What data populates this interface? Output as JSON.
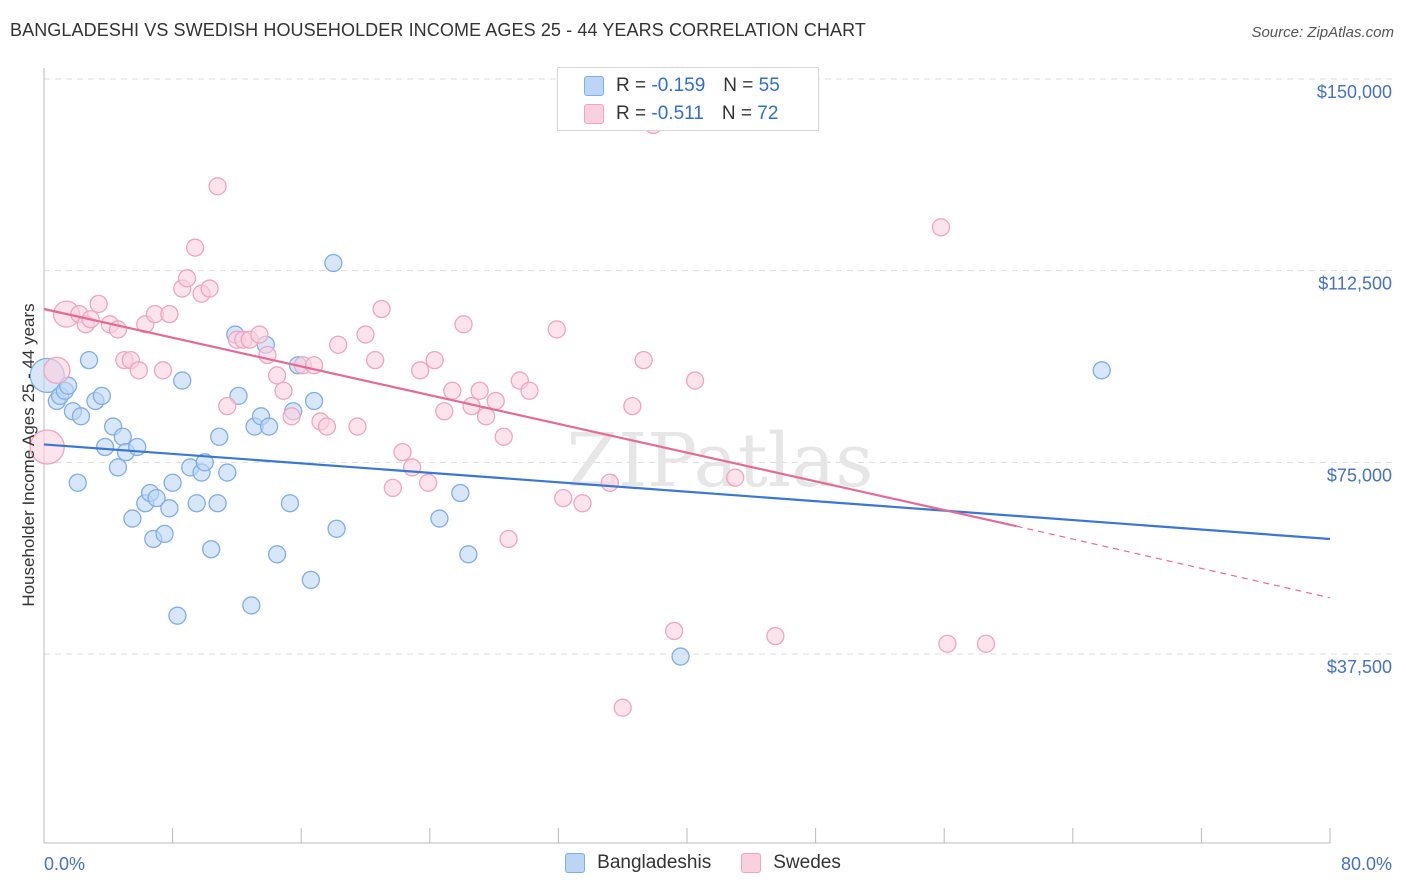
{
  "title": "BANGLADESHI VS SWEDISH HOUSEHOLDER INCOME AGES 25 - 44 YEARS CORRELATION CHART",
  "source": "Source: ZipAtlas.com",
  "watermark": "ZIPatlas",
  "legend": {
    "rows": [
      {
        "r_label": "R = ",
        "r_value": "-0.159",
        "n_label": "N = ",
        "n_value": "55",
        "color": "#7faee8",
        "fill": "#bcd5f5"
      },
      {
        "r_label": "R = ",
        "r_value": "-0.511",
        "n_label": "N = ",
        "n_value": "72",
        "color": "#f0a5bf",
        "fill": "#fbd0de"
      }
    ]
  },
  "bottom_legend": [
    {
      "label": "Bangladeshis",
      "color": "#7faee8",
      "fill": "#bcd5f5"
    },
    {
      "label": "Swedes",
      "color": "#f0a5bf",
      "fill": "#fbd0de"
    }
  ],
  "chart_data": {
    "type": "scatter",
    "title": "BANGLADESHI VS SWEDISH HOUSEHOLDER INCOME AGES 25 - 44 YEARS CORRELATION CHART",
    "xlabel": "",
    "ylabel": "Householder Income Ages 25 - 44 years",
    "xlim": [
      0,
      80
    ],
    "ylim": [
      0,
      152000
    ],
    "x_tick_labels": [
      "0.0%",
      "80.0%"
    ],
    "y_ticks": [
      37500,
      75000,
      112500,
      150000
    ],
    "y_tick_labels": [
      "$37,500",
      "$75,000",
      "$112,500",
      "$150,000"
    ],
    "grid": true,
    "legend_position": "top-center",
    "series": [
      {
        "name": "Bangladeshis",
        "color": "#3a78d0",
        "fill": "#bcd5f5",
        "stroke": "#7faee8",
        "points": [
          [
            0.2,
            92000
          ],
          [
            0.8,
            87000
          ],
          [
            1.0,
            88000
          ],
          [
            1.3,
            89000
          ],
          [
            1.5,
            90000
          ],
          [
            1.8,
            85000
          ],
          [
            2.3,
            84000
          ],
          [
            2.8,
            95000
          ],
          [
            3.2,
            87000
          ],
          [
            3.6,
            88000
          ],
          [
            2.1,
            71000
          ],
          [
            3.8,
            78000
          ],
          [
            4.3,
            82000
          ],
          [
            4.6,
            74000
          ],
          [
            4.9,
            80000
          ],
          [
            5.1,
            77000
          ],
          [
            5.8,
            78000
          ],
          [
            5.5,
            64000
          ],
          [
            6.3,
            67000
          ],
          [
            6.6,
            69000
          ],
          [
            6.8,
            60000
          ],
          [
            7.0,
            68000
          ],
          [
            7.5,
            61000
          ],
          [
            7.8,
            66000
          ],
          [
            8.0,
            71000
          ],
          [
            8.3,
            45000
          ],
          [
            8.6,
            91000
          ],
          [
            9.1,
            74000
          ],
          [
            9.5,
            67000
          ],
          [
            9.8,
            73000
          ],
          [
            10.0,
            75000
          ],
          [
            10.4,
            58000
          ],
          [
            10.9,
            80000
          ],
          [
            10.8,
            67000
          ],
          [
            11.4,
            73000
          ],
          [
            11.9,
            100000
          ],
          [
            12.1,
            88000
          ],
          [
            12.9,
            47000
          ],
          [
            13.1,
            82000
          ],
          [
            13.5,
            84000
          ],
          [
            14.0,
            82000
          ],
          [
            13.8,
            98000
          ],
          [
            14.5,
            57000
          ],
          [
            15.3,
            67000
          ],
          [
            15.5,
            85000
          ],
          [
            15.8,
            94000
          ],
          [
            16.6,
            52000
          ],
          [
            16.8,
            87000
          ],
          [
            18.0,
            114000
          ],
          [
            18.2,
            62000
          ],
          [
            24.6,
            64000
          ],
          [
            25.9,
            69000
          ],
          [
            26.4,
            57000
          ],
          [
            39.6,
            37000
          ],
          [
            65.8,
            93000
          ]
        ],
        "trend": {
          "x1": 0,
          "y1": 78500,
          "x2": 80,
          "y2": 60000
        }
      },
      {
        "name": "Swedes",
        "color": "#e66a98",
        "fill": "#fbd0de",
        "stroke": "#f0a5bf",
        "points": [
          [
            0.2,
            78000
          ],
          [
            0.8,
            93000
          ],
          [
            1.4,
            104000
          ],
          [
            2.2,
            104000
          ],
          [
            2.6,
            102000
          ],
          [
            2.9,
            103000
          ],
          [
            3.4,
            106000
          ],
          [
            4.1,
            102000
          ],
          [
            4.6,
            101000
          ],
          [
            5.0,
            95000
          ],
          [
            5.4,
            95000
          ],
          [
            5.9,
            93000
          ],
          [
            6.3,
            102000
          ],
          [
            6.9,
            104000
          ],
          [
            7.4,
            93000
          ],
          [
            7.8,
            104000
          ],
          [
            8.6,
            109000
          ],
          [
            8.9,
            111000
          ],
          [
            9.4,
            117000
          ],
          [
            9.8,
            108000
          ],
          [
            10.3,
            109000
          ],
          [
            10.8,
            129000
          ],
          [
            11.4,
            86000
          ],
          [
            12.0,
            99000
          ],
          [
            12.4,
            99000
          ],
          [
            12.8,
            99000
          ],
          [
            13.4,
            100000
          ],
          [
            13.9,
            96000
          ],
          [
            14.5,
            92000
          ],
          [
            14.9,
            89000
          ],
          [
            15.4,
            84000
          ],
          [
            16.1,
            94000
          ],
          [
            16.8,
            94000
          ],
          [
            17.2,
            83000
          ],
          [
            17.6,
            82000
          ],
          [
            18.3,
            98000
          ],
          [
            19.5,
            82000
          ],
          [
            20.0,
            100000
          ],
          [
            20.6,
            95000
          ],
          [
            21.0,
            105000
          ],
          [
            21.7,
            70000
          ],
          [
            22.3,
            77000
          ],
          [
            22.9,
            74000
          ],
          [
            23.4,
            93000
          ],
          [
            23.9,
            71000
          ],
          [
            24.3,
            95000
          ],
          [
            24.9,
            85000
          ],
          [
            25.4,
            89000
          ],
          [
            26.1,
            102000
          ],
          [
            26.6,
            86000
          ],
          [
            27.1,
            89000
          ],
          [
            27.5,
            84000
          ],
          [
            28.1,
            87000
          ],
          [
            28.6,
            80000
          ],
          [
            28.9,
            60000
          ],
          [
            29.6,
            91000
          ],
          [
            30.2,
            89000
          ],
          [
            31.9,
            101000
          ],
          [
            32.3,
            68000
          ],
          [
            33.5,
            67000
          ],
          [
            35.2,
            71000
          ],
          [
            36.6,
            86000
          ],
          [
            37.3,
            95000
          ],
          [
            37.9,
            141000
          ],
          [
            39.2,
            42000
          ],
          [
            40.5,
            91000
          ],
          [
            43.0,
            72000
          ],
          [
            45.5,
            41000
          ],
          [
            55.8,
            121000
          ],
          [
            56.2,
            39500
          ],
          [
            58.6,
            39500
          ],
          [
            36.0,
            27000
          ]
        ],
        "trend": {
          "x1": 0,
          "y1": 105000,
          "x2": 60.5,
          "y2": 62500
        },
        "trend_extension": {
          "x1": 60.5,
          "y1": 62500,
          "x2": 80,
          "y2": 48500
        }
      }
    ]
  }
}
